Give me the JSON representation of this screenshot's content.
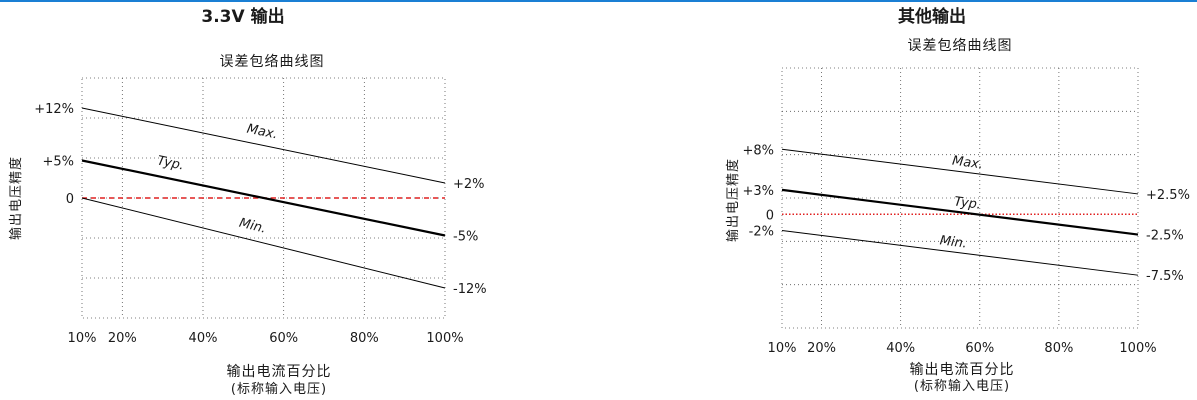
{
  "colors": {
    "accent": "#1a7fd4",
    "zero_line": "#e02020",
    "series": "#000000",
    "grid": "#555555"
  },
  "chart_data": [
    {
      "type": "line",
      "section_title": "3.3V 输出",
      "title": "误差包络曲线图",
      "ylabel": "输出电压精度",
      "xlabel": "输出电流百分比",
      "xlabel_sub": "(标称输入电压)",
      "xlim": [
        10,
        100
      ],
      "ylim": [
        -16,
        16
      ],
      "x_ticks": [
        10,
        20,
        40,
        60,
        80,
        100
      ],
      "x_tick_labels": [
        "10%",
        "20%",
        "40%",
        "60%",
        "80%",
        "100%"
      ],
      "grid": true,
      "zero_line": {
        "value": 0,
        "style": "dashed",
        "color": "#e02020"
      },
      "left_labels": [
        {
          "y": 12,
          "text": "+12%"
        },
        {
          "y": 5,
          "text": "+5%"
        },
        {
          "y": 0,
          "text": "0"
        }
      ],
      "right_labels": [
        {
          "y": 2,
          "text": "+2%"
        },
        {
          "y": -5,
          "text": "-5%"
        },
        {
          "y": -12,
          "text": "-12%"
        }
      ],
      "series": [
        {
          "name": "Max.",
          "x": [
            10,
            100
          ],
          "y": [
            12,
            2
          ]
        },
        {
          "name": "Typ.",
          "x": [
            10,
            100
          ],
          "y": [
            5,
            -5
          ]
        },
        {
          "name": "Min.",
          "x": [
            10,
            100
          ],
          "y": [
            0,
            -12
          ]
        }
      ]
    },
    {
      "type": "line",
      "section_title": "其他输出",
      "title": "误差包络曲线图",
      "ylabel": "输出电压精度",
      "xlabel": "输出电流百分比",
      "xlabel_sub": "(标称输入电压)",
      "xlim": [
        10,
        100
      ],
      "ylim": [
        -14,
        18
      ],
      "x_ticks": [
        10,
        20,
        40,
        60,
        80,
        100
      ],
      "x_tick_labels": [
        "10%",
        "20%",
        "40%",
        "60%",
        "80%",
        "100%"
      ],
      "grid": true,
      "zero_line": {
        "value": 0,
        "style": "dotted",
        "color": "#e02020"
      },
      "left_labels": [
        {
          "y": 8,
          "text": "+8%"
        },
        {
          "y": 3,
          "text": "+3%"
        },
        {
          "y": 0,
          "text": "0"
        },
        {
          "y": -2,
          "text": "-2%"
        }
      ],
      "right_labels": [
        {
          "y": 2.5,
          "text": "+2.5%"
        },
        {
          "y": -2.5,
          "text": "-2.5%"
        },
        {
          "y": -7.5,
          "text": "-7.5%"
        }
      ],
      "series": [
        {
          "name": "Max.",
          "x": [
            10,
            100
          ],
          "y": [
            8,
            2.5
          ]
        },
        {
          "name": "Typ.",
          "x": [
            10,
            100
          ],
          "y": [
            3,
            -2.5
          ]
        },
        {
          "name": "Min.",
          "x": [
            10,
            100
          ],
          "y": [
            -2,
            -7.5
          ]
        }
      ]
    }
  ]
}
